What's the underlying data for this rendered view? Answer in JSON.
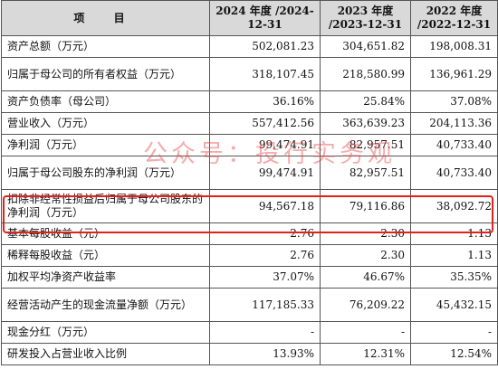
{
  "header": {
    "item": "项  目",
    "col1": "2024 年度 /2024-12-31",
    "col2": "2023 年度 /2023-12-31",
    "col3": "2022 年度 /2022-12-31"
  },
  "rows": [
    {
      "label": "资产总额（万元）",
      "v2024": "502,081.23",
      "v2023": "304,651.82",
      "v2022": "198,008.31"
    },
    {
      "label": "归属于母公司的所有者权益（万元）",
      "v2024": "318,107.45",
      "v2023": "218,580.99",
      "v2022": "136,961.29"
    },
    {
      "label": "资产负债率（母公司）",
      "v2024": "36.16%",
      "v2023": "25.84%",
      "v2022": "37.08%"
    },
    {
      "label": "营业收入（万元）",
      "v2024": "557,412.56",
      "v2023": "363,639.23",
      "v2022": "204,113.36"
    },
    {
      "label": "净利润（万元）",
      "v2024": "99,474.91",
      "v2023": "82,957.51",
      "v2022": "40,733.40"
    },
    {
      "label": "归属于母公司股东的净利润（万元）",
      "v2024": "99,474.91",
      "v2023": "82,957.51",
      "v2022": "40,733.40"
    },
    {
      "label": "扣除非经常性损益后归属于母公司股东的净利润（万元）",
      "v2024": "94,567.18",
      "v2023": "79,116.86",
      "v2022": "38,092.72"
    },
    {
      "label": "基本每股收益（元）",
      "v2024": "2.76",
      "v2023": "2.30",
      "v2022": "1.13"
    },
    {
      "label": "稀释每股收益（元）",
      "v2024": "2.76",
      "v2023": "2.30",
      "v2022": "1.13"
    },
    {
      "label": "加权平均净资产收益率",
      "v2024": "37.07%",
      "v2023": "46.67%",
      "v2022": "35.35%"
    },
    {
      "label": "经营活动产生的现金流量净额（万元）",
      "v2024": "117,185.33",
      "v2023": "76,209.22",
      "v2022": "45,432.15"
    },
    {
      "label": "现金分红（万元）",
      "v2024": "-",
      "v2023": "-",
      "v2022": "-"
    },
    {
      "label": "研发投入占营业收入比例",
      "v2024": "13.93%",
      "v2023": "12.31%",
      "v2022": "12.54%"
    }
  ],
  "watermark": "公众号：投行实务观",
  "colors": {
    "header_bg": "#d9d9d9",
    "highlight": "#e0211c",
    "watermark": "#eb4646"
  }
}
